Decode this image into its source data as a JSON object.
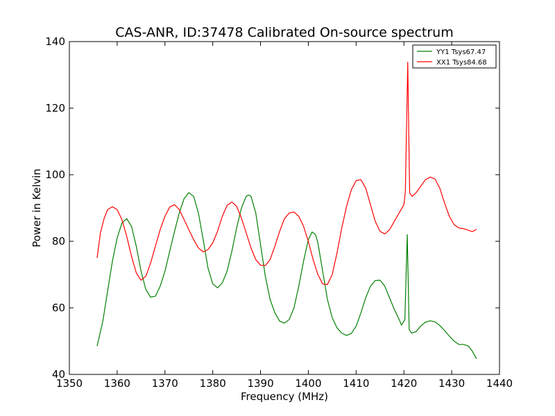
{
  "chart_data": {
    "type": "line",
    "title": "CAS-ANR, ID:37478 Calibrated On-source spectrum",
    "xlabel": "Frequency (MHz)",
    "ylabel": "Power in Kelvin",
    "xlim": [
      1350,
      1440
    ],
    "ylim": [
      40,
      140
    ],
    "xticks": [
      1350,
      1360,
      1370,
      1380,
      1390,
      1400,
      1410,
      1420,
      1430,
      1440
    ],
    "yticks": [
      40,
      60,
      80,
      100,
      120,
      140
    ],
    "grid": false,
    "legend_position": "top-right",
    "series": [
      {
        "name": "YY1 Tsys67.47",
        "color": "#008000",
        "points": [
          [
            1355.8,
            48.5
          ],
          [
            1357.0,
            56
          ],
          [
            1358.0,
            65
          ],
          [
            1359.0,
            74
          ],
          [
            1360.0,
            81
          ],
          [
            1361.0,
            85.5
          ],
          [
            1362.0,
            86.8
          ],
          [
            1363.0,
            84.5
          ],
          [
            1364.0,
            78.5
          ],
          [
            1365.0,
            71
          ],
          [
            1366.0,
            65.5
          ],
          [
            1367.0,
            63.2
          ],
          [
            1368.0,
            63.5
          ],
          [
            1369.0,
            66.5
          ],
          [
            1370.0,
            71
          ],
          [
            1371.0,
            77
          ],
          [
            1372.0,
            83
          ],
          [
            1373.0,
            88.5
          ],
          [
            1374.0,
            92.8
          ],
          [
            1375.0,
            94.6
          ],
          [
            1376.0,
            93.5
          ],
          [
            1377.0,
            88.5
          ],
          [
            1378.0,
            80.5
          ],
          [
            1379.0,
            72
          ],
          [
            1380.0,
            67.2
          ],
          [
            1381.0,
            66
          ],
          [
            1382.0,
            67.5
          ],
          [
            1383.0,
            71
          ],
          [
            1384.0,
            77
          ],
          [
            1385.0,
            84
          ],
          [
            1386.0,
            90
          ],
          [
            1387.0,
            93.5
          ],
          [
            1387.5,
            93.9
          ],
          [
            1388.0,
            93.5
          ],
          [
            1389.0,
            88.5
          ],
          [
            1390.0,
            79
          ],
          [
            1391.0,
            69.5
          ],
          [
            1392.0,
            62.5
          ],
          [
            1393.0,
            58.5
          ],
          [
            1394.0,
            56
          ],
          [
            1395.0,
            55.4
          ],
          [
            1396.0,
            56.5
          ],
          [
            1397.0,
            60
          ],
          [
            1398.0,
            66.5
          ],
          [
            1399.0,
            74
          ],
          [
            1400.0,
            80.5
          ],
          [
            1400.8,
            82.8
          ],
          [
            1401.5,
            82
          ],
          [
            1402.0,
            79.5
          ],
          [
            1403.0,
            71
          ],
          [
            1404.0,
            62.5
          ],
          [
            1405.0,
            57
          ],
          [
            1406.0,
            54
          ],
          [
            1407.0,
            52.4
          ],
          [
            1408.0,
            51.7
          ],
          [
            1409.0,
            52.3
          ],
          [
            1410.0,
            54.5
          ],
          [
            1411.0,
            58.5
          ],
          [
            1412.0,
            63
          ],
          [
            1413.0,
            66.5
          ],
          [
            1414.0,
            68.2
          ],
          [
            1415.0,
            68.3
          ],
          [
            1416.0,
            66.5
          ],
          [
            1417.0,
            63
          ],
          [
            1418.0,
            59.5
          ],
          [
            1419.0,
            56.5
          ],
          [
            1419.5,
            54.8
          ],
          [
            1420.2,
            56.5
          ],
          [
            1420.7,
            82
          ],
          [
            1421.1,
            53.5
          ],
          [
            1421.6,
            52.4
          ],
          [
            1422.5,
            52.8
          ],
          [
            1423.5,
            54.5
          ],
          [
            1424.5,
            55.7
          ],
          [
            1425.5,
            56.1
          ],
          [
            1426.5,
            55.8
          ],
          [
            1427.5,
            54.7
          ],
          [
            1428.5,
            53.2
          ],
          [
            1429.5,
            51.5
          ],
          [
            1430.5,
            50
          ],
          [
            1431.5,
            49
          ],
          [
            1432.5,
            49
          ],
          [
            1433.5,
            48.5
          ],
          [
            1434.3,
            47
          ],
          [
            1435.2,
            44.7
          ]
        ]
      },
      {
        "name": "XX1 Tsys84.68",
        "color": "#ff0000",
        "points": [
          [
            1355.8,
            75
          ],
          [
            1356.5,
            82.5
          ],
          [
            1357.3,
            87
          ],
          [
            1358.0,
            89.5
          ],
          [
            1359.0,
            90.4
          ],
          [
            1360.0,
            89.5
          ],
          [
            1361.0,
            86.5
          ],
          [
            1362.0,
            81.5
          ],
          [
            1363.0,
            75.5
          ],
          [
            1364.0,
            70.5
          ],
          [
            1365.0,
            68.3
          ],
          [
            1366.0,
            69.5
          ],
          [
            1367.0,
            73.5
          ],
          [
            1368.0,
            78.5
          ],
          [
            1369.0,
            83.5
          ],
          [
            1370.0,
            87.5
          ],
          [
            1371.0,
            90.3
          ],
          [
            1372.0,
            91
          ],
          [
            1373.0,
            89.5
          ],
          [
            1374.0,
            86.5
          ],
          [
            1375.0,
            83.5
          ],
          [
            1376.0,
            80.5
          ],
          [
            1377.0,
            78
          ],
          [
            1378.0,
            76.8
          ],
          [
            1379.0,
            77.5
          ],
          [
            1380.0,
            79.5
          ],
          [
            1381.0,
            83
          ],
          [
            1382.0,
            87.5
          ],
          [
            1383.0,
            90.8
          ],
          [
            1384.0,
            91.8
          ],
          [
            1385.0,
            90.5
          ],
          [
            1386.0,
            87
          ],
          [
            1387.0,
            82.5
          ],
          [
            1388.0,
            78
          ],
          [
            1389.0,
            74.5
          ],
          [
            1390.0,
            72.8
          ],
          [
            1391.0,
            72.7
          ],
          [
            1392.0,
            74.5
          ],
          [
            1393.0,
            78.5
          ],
          [
            1394.0,
            83
          ],
          [
            1395.0,
            86.8
          ],
          [
            1396.0,
            88.5
          ],
          [
            1397.0,
            88.8
          ],
          [
            1398.0,
            87.5
          ],
          [
            1399.0,
            84.5
          ],
          [
            1400.0,
            80
          ],
          [
            1401.0,
            74.5
          ],
          [
            1402.0,
            70
          ],
          [
            1403.0,
            67.2
          ],
          [
            1404.0,
            67
          ],
          [
            1405.0,
            70
          ],
          [
            1406.0,
            76.5
          ],
          [
            1407.0,
            84
          ],
          [
            1408.0,
            90.5
          ],
          [
            1409.0,
            95.5
          ],
          [
            1410.0,
            98.2
          ],
          [
            1411.0,
            98.5
          ],
          [
            1412.0,
            96
          ],
          [
            1413.0,
            91
          ],
          [
            1414.0,
            86
          ],
          [
            1415.0,
            83
          ],
          [
            1416.0,
            82.2
          ],
          [
            1417.0,
            83.5
          ],
          [
            1418.0,
            86
          ],
          [
            1419.0,
            88.5
          ],
          [
            1420.0,
            91
          ],
          [
            1420.3,
            95
          ],
          [
            1420.8,
            133.8
          ],
          [
            1421.2,
            94.5
          ],
          [
            1421.7,
            93.5
          ],
          [
            1422.5,
            94.5
          ],
          [
            1423.5,
            96.5
          ],
          [
            1424.5,
            98.5
          ],
          [
            1425.5,
            99.3
          ],
          [
            1426.5,
            98.7
          ],
          [
            1427.5,
            96
          ],
          [
            1428.5,
            91.5
          ],
          [
            1429.5,
            87.5
          ],
          [
            1430.5,
            85
          ],
          [
            1431.5,
            84
          ],
          [
            1432.5,
            83.8
          ],
          [
            1433.5,
            83.3
          ],
          [
            1434.3,
            82.9
          ],
          [
            1435.2,
            83.6
          ]
        ]
      }
    ]
  }
}
